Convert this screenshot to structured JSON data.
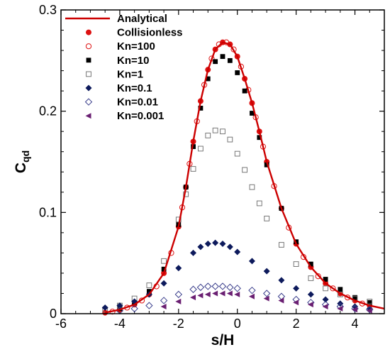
{
  "chart_data": {
    "type": "scatter",
    "xlabel": "s/H",
    "ylabel": {
      "main": "C",
      "sub": "qd"
    },
    "xlim": [
      -6,
      5
    ],
    "ylim": [
      0,
      0.3
    ],
    "xticks": [
      -6,
      -4,
      -2,
      0,
      2,
      4
    ],
    "yticks": [
      0,
      0.1,
      0.2,
      0.3
    ],
    "grid": false,
    "legend_position": "top-left",
    "series": [
      {
        "name": "Analytical",
        "style": "line",
        "color": "#cc0000",
        "x": [
          -4.5,
          -4.0,
          -3.5,
          -3.0,
          -2.5,
          -2.0,
          -1.75,
          -1.5,
          -1.25,
          -1.0,
          -0.75,
          -0.5,
          -0.25,
          0.0,
          0.25,
          0.5,
          0.75,
          1.0,
          1.5,
          2.0,
          2.5,
          3.0,
          3.5,
          4.0,
          4.5,
          5.0
        ],
        "y": [
          0.001,
          0.004,
          0.009,
          0.019,
          0.04,
          0.086,
          0.125,
          0.17,
          0.21,
          0.241,
          0.261,
          0.268,
          0.266,
          0.254,
          0.232,
          0.208,
          0.18,
          0.15,
          0.104,
          0.069,
          0.046,
          0.03,
          0.02,
          0.013,
          0.008,
          0.005
        ]
      },
      {
        "name": "Collisionless",
        "style": "marker",
        "marker": "circle-filled",
        "color": "#dd1111",
        "x": [
          -4.5,
          -4.0,
          -3.5,
          -3.0,
          -2.5,
          -2.0,
          -1.75,
          -1.5,
          -1.25,
          -1.0,
          -0.75,
          -0.5,
          -0.25,
          0.0,
          0.25,
          0.5,
          0.75,
          1.0,
          1.5,
          2.0,
          2.5,
          3.0,
          3.5,
          4.0,
          4.5
        ],
        "y": [
          0.001,
          0.004,
          0.009,
          0.019,
          0.04,
          0.086,
          0.125,
          0.17,
          0.21,
          0.241,
          0.261,
          0.268,
          0.266,
          0.254,
          0.232,
          0.208,
          0.18,
          0.15,
          0.104,
          0.069,
          0.046,
          0.03,
          0.02,
          0.013,
          0.008
        ]
      },
      {
        "name": "Kn=100",
        "style": "marker",
        "marker": "circle-open",
        "color": "#dd1111",
        "x": [
          -4.25,
          -3.75,
          -3.25,
          -2.75,
          -2.25,
          -1.875,
          -1.625,
          -1.375,
          -1.125,
          -0.875,
          -0.625,
          -0.375,
          -0.125,
          0.125,
          0.375,
          0.625,
          0.875,
          1.25,
          1.75,
          2.25,
          2.75,
          3.25,
          3.75,
          4.25
        ],
        "y": [
          0.002,
          0.006,
          0.013,
          0.027,
          0.06,
          0.105,
          0.148,
          0.19,
          0.226,
          0.252,
          0.266,
          0.268,
          0.261,
          0.244,
          0.221,
          0.194,
          0.165,
          0.126,
          0.085,
          0.056,
          0.037,
          0.025,
          0.016,
          0.01
        ]
      },
      {
        "name": "Kn=10",
        "style": "marker",
        "marker": "square-filled",
        "color": "#000000",
        "x": [
          -4.0,
          -3.5,
          -3.0,
          -2.5,
          -2.0,
          -1.75,
          -1.5,
          -1.25,
          -1.0,
          -0.75,
          -0.5,
          -0.25,
          0.0,
          0.25,
          0.5,
          0.75,
          1.0,
          1.5,
          2.0,
          2.5,
          3.0,
          3.5,
          4.0,
          4.5
        ],
        "y": [
          0.005,
          0.011,
          0.022,
          0.044,
          0.088,
          0.125,
          0.165,
          0.203,
          0.232,
          0.249,
          0.254,
          0.25,
          0.238,
          0.22,
          0.198,
          0.174,
          0.147,
          0.104,
          0.071,
          0.049,
          0.034,
          0.024,
          0.016,
          0.011
        ]
      },
      {
        "name": "Kn=1",
        "style": "marker",
        "marker": "square-open",
        "color": "#777777",
        "x": [
          -4.5,
          -4.0,
          -3.5,
          -3.0,
          -2.5,
          -2.0,
          -1.75,
          -1.5,
          -1.25,
          -1.0,
          -0.75,
          -0.5,
          -0.25,
          0.0,
          0.25,
          0.5,
          0.75,
          1.0,
          1.5,
          2.0,
          2.5,
          3.0,
          3.5,
          4.0,
          4.5
        ],
        "y": [
          0.004,
          0.008,
          0.015,
          0.028,
          0.052,
          0.093,
          0.118,
          0.143,
          0.163,
          0.176,
          0.181,
          0.18,
          0.172,
          0.158,
          0.142,
          0.125,
          0.109,
          0.094,
          0.068,
          0.049,
          0.035,
          0.025,
          0.019,
          0.015,
          0.012
        ]
      },
      {
        "name": "Kn=0.1",
        "style": "marker",
        "marker": "diamond-filled",
        "color": "#0d1a5c",
        "x": [
          -4.5,
          -4.0,
          -3.5,
          -3.0,
          -2.5,
          -2.0,
          -1.5,
          -1.25,
          -1.0,
          -0.75,
          -0.5,
          -0.25,
          0.0,
          0.5,
          1.0,
          1.5,
          2.0,
          2.5,
          3.0,
          3.5,
          4.0,
          4.5
        ],
        "y": [
          0.006,
          0.008,
          0.012,
          0.019,
          0.03,
          0.045,
          0.06,
          0.066,
          0.069,
          0.07,
          0.069,
          0.066,
          0.061,
          0.052,
          0.042,
          0.033,
          0.025,
          0.019,
          0.014,
          0.01,
          0.007,
          0.005
        ]
      },
      {
        "name": "Kn=0.01",
        "style": "marker",
        "marker": "diamond-open",
        "color": "#3b3f8c",
        "x": [
          -4.0,
          -3.5,
          -3.0,
          -2.5,
          -2.0,
          -1.5,
          -1.25,
          -1.0,
          -0.75,
          -0.5,
          -0.25,
          0.0,
          0.5,
          1.0,
          1.5,
          2.0,
          2.5,
          3.0,
          3.5,
          4.0,
          4.5
        ],
        "y": [
          0.003,
          0.005,
          0.008,
          0.013,
          0.019,
          0.024,
          0.026,
          0.027,
          0.027,
          0.027,
          0.026,
          0.025,
          0.023,
          0.02,
          0.017,
          0.014,
          0.011,
          0.009,
          0.007,
          0.005,
          0.004
        ]
      },
      {
        "name": "Kn=0.001",
        "style": "marker",
        "marker": "triangle-left-filled",
        "color": "#6a1f72",
        "x": [
          -2.5,
          -2.0,
          -1.5,
          -1.25,
          -1.0,
          -0.75,
          -0.5,
          -0.25,
          0.0,
          0.5,
          1.0,
          1.5,
          2.0,
          2.5,
          3.0,
          3.5,
          4.0,
          4.5
        ],
        "y": [
          0.007,
          0.012,
          0.016,
          0.018,
          0.019,
          0.02,
          0.02,
          0.02,
          0.019,
          0.017,
          0.015,
          0.013,
          0.011,
          0.009,
          0.007,
          0.005,
          0.004,
          0.003
        ]
      }
    ]
  }
}
